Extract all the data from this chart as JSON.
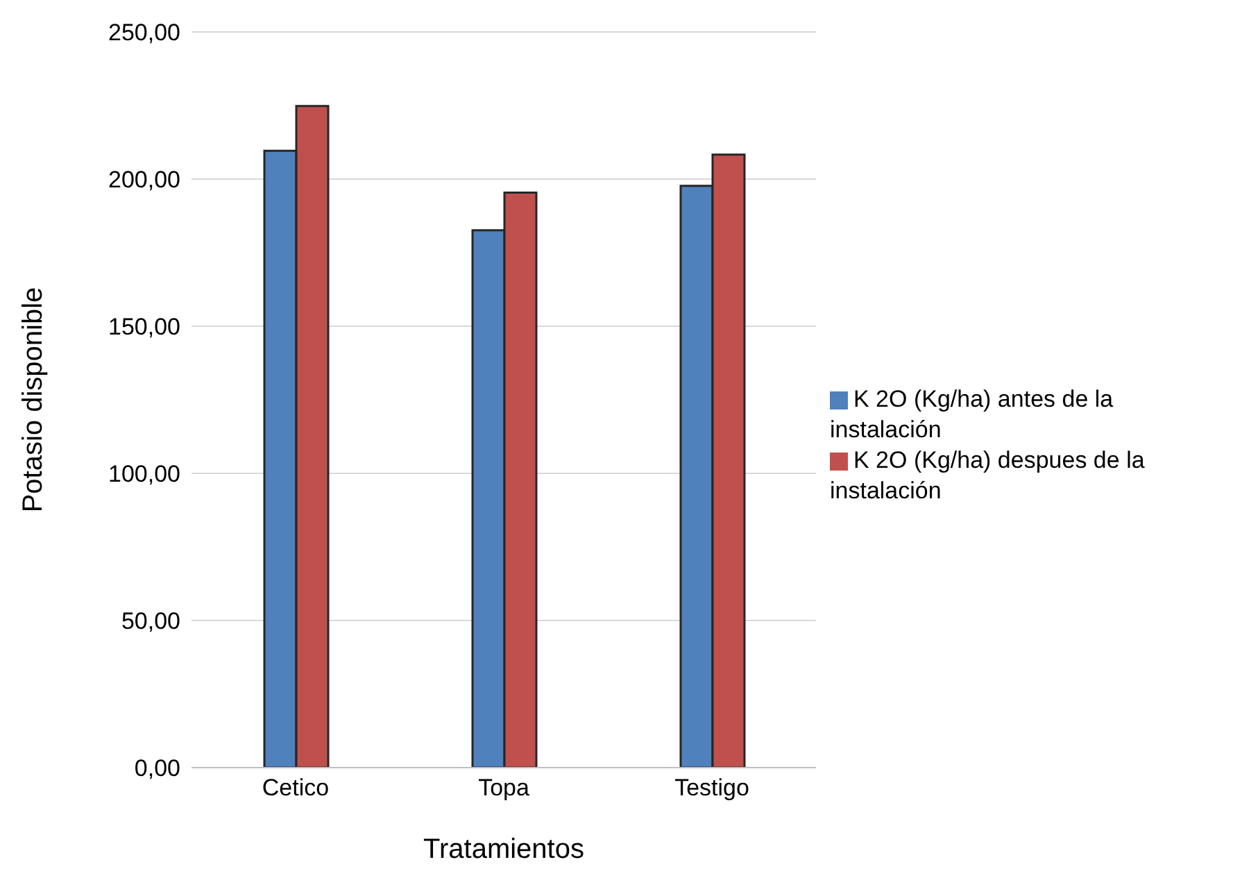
{
  "chart_data": {
    "type": "bar",
    "xlabel": "Tratamientos",
    "ylabel": "Potasio   disponible",
    "categories": [
      "Cetico",
      "Topa",
      "Testigo"
    ],
    "series": [
      {
        "name": "K 2O (Kg/ha) antes de la instalación",
        "color": "#4f81bd",
        "values": [
          209.6,
          182.6,
          197.7
        ]
      },
      {
        "name": "K 2O (Kg/ha) despues de la instalación",
        "color": "#c0504d",
        "values": [
          224.8,
          195.4,
          208.3
        ]
      }
    ],
    "ylim": [
      0,
      250
    ],
    "yticks": [
      {
        "value": 0,
        "label": "0,00"
      },
      {
        "value": 50,
        "label": "50,00"
      },
      {
        "value": 100,
        "label": "100,00"
      },
      {
        "value": 150,
        "label": "150,00"
      },
      {
        "value": 200,
        "label": "200,00"
      },
      {
        "value": 250,
        "label": "250,00"
      }
    ],
    "grid": "y",
    "legend": "right"
  }
}
